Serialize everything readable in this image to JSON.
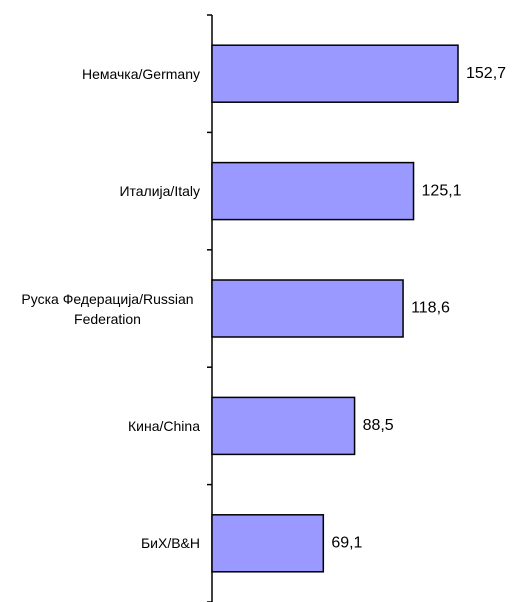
{
  "chart_data": {
    "type": "barh",
    "categories": [
      "Немачка/Germany",
      "Италија/Italy",
      "Руска Федерација/Russian Federation",
      "Кина/China",
      "БиХ/B&H"
    ],
    "values": [
      152.7,
      125.1,
      118.6,
      88.5,
      69.1
    ],
    "value_labels": [
      "152,7",
      "125,1",
      "118,6",
      "88,5",
      "69,1"
    ],
    "color": "#9999ff"
  }
}
